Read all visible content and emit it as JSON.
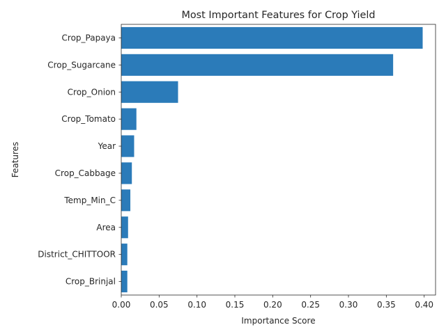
{
  "chart_data": {
    "type": "bar",
    "orientation": "horizontal",
    "title": "Most Important Features for Crop Yield",
    "xlabel": "Importance Score",
    "ylabel": "Features",
    "categories": [
      "Crop_Papaya",
      "Crop_Sugarcane",
      "Crop_Onion",
      "Crop_Tomato",
      "Year",
      "Crop_Cabbage",
      "Temp_Min_C",
      "Area",
      "District_CHITTOOR",
      "Crop_Brinjal"
    ],
    "values": [
      0.398,
      0.359,
      0.075,
      0.02,
      0.017,
      0.014,
      0.012,
      0.009,
      0.008,
      0.008
    ],
    "xlim": [
      0,
      0.415
    ],
    "xticks": [
      0.0,
      0.05,
      0.1,
      0.15,
      0.2,
      0.25,
      0.3,
      0.35,
      0.4
    ],
    "xtick_labels": [
      "0.00",
      "0.05",
      "0.10",
      "0.15",
      "0.20",
      "0.25",
      "0.30",
      "0.35",
      "0.40"
    ],
    "grid": false,
    "bar_color": "#2b7bb9"
  }
}
